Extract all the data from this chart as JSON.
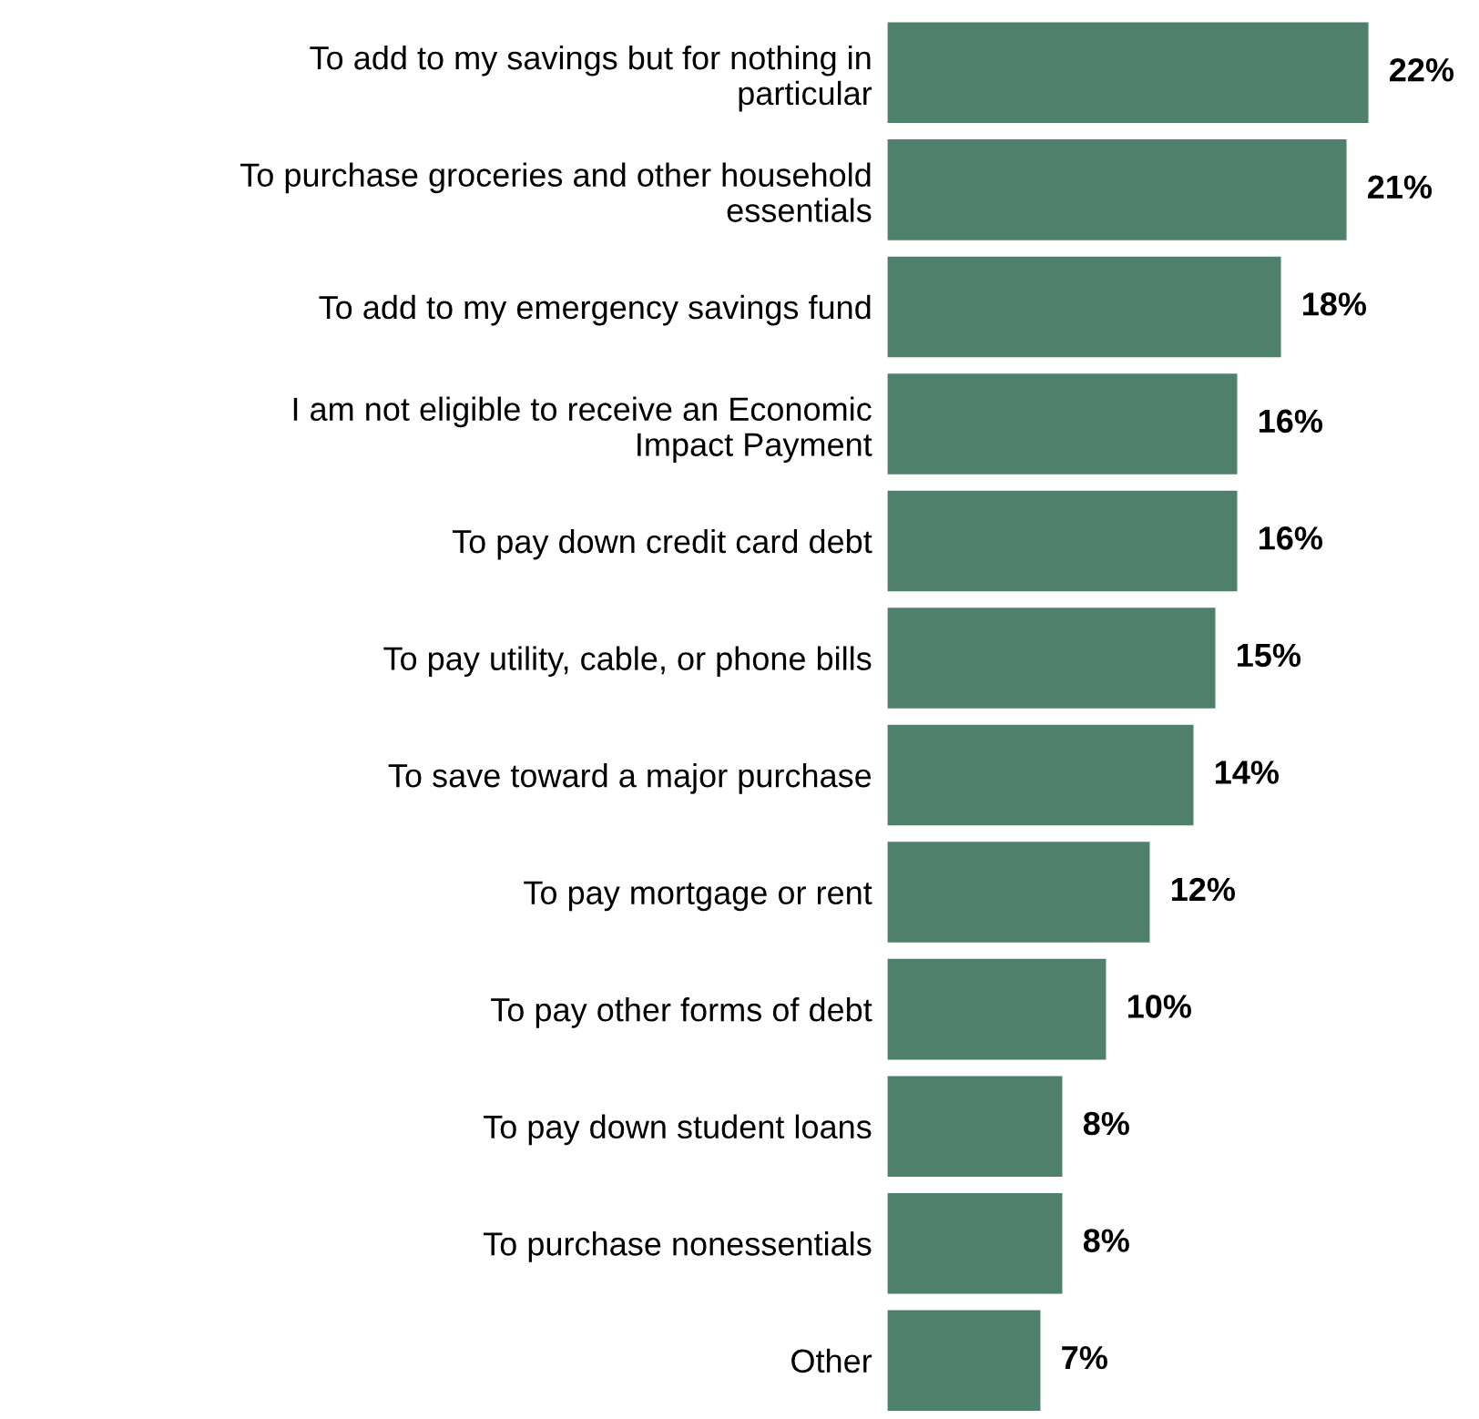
{
  "chart_data": {
    "type": "bar",
    "orientation": "horizontal",
    "categories": [
      "To add to my savings but for nothing in\nparticular",
      "To purchase groceries and other household\nessentials",
      "To add to my emergency savings fund",
      "I am not eligible to receive an Economic\nImpact Payment",
      "To pay down credit card debt",
      "To pay utility, cable, or phone bills",
      "To save toward a major purchase",
      "To pay mortgage or rent",
      "To pay other forms of debt",
      "To pay down student loans",
      "To purchase nonessentials",
      "Other"
    ],
    "values": [
      22,
      21,
      18,
      16,
      16,
      15,
      14,
      12,
      10,
      8,
      8,
      7
    ],
    "value_labels": [
      "22%",
      "21%",
      "18%",
      "16%",
      "16%",
      "15%",
      "14%",
      "12%",
      "10%",
      "8%",
      "8%",
      "7%"
    ],
    "color": "#4f806b",
    "grid": false,
    "legend": false
  }
}
